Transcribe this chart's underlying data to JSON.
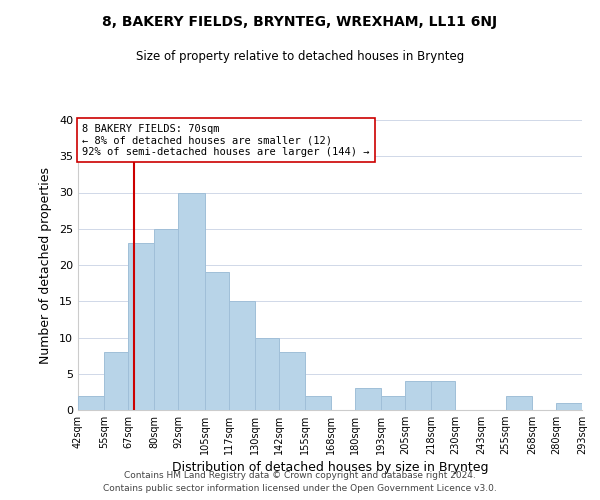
{
  "title": "8, BAKERY FIELDS, BRYNTEG, WREXHAM, LL11 6NJ",
  "subtitle": "Size of property relative to detached houses in Brynteg",
  "xlabel": "Distribution of detached houses by size in Brynteg",
  "ylabel": "Number of detached properties",
  "bar_edges": [
    42,
    55,
    67,
    80,
    92,
    105,
    117,
    130,
    142,
    155,
    168,
    180,
    193,
    205,
    218,
    230,
    243,
    255,
    268,
    280,
    293
  ],
  "bar_heights": [
    2,
    8,
    23,
    25,
    30,
    19,
    15,
    10,
    8,
    2,
    0,
    3,
    2,
    4,
    4,
    0,
    0,
    2,
    0,
    1
  ],
  "bar_color": "#b8d4e8",
  "bar_edge_color": "#a0bfd8",
  "property_line_x": 70,
  "property_line_color": "#cc0000",
  "annotation_line1": "8 BAKERY FIELDS: 70sqm",
  "annotation_line2": "← 8% of detached houses are smaller (12)",
  "annotation_line3": "92% of semi-detached houses are larger (144) →",
  "annotation_box_color": "#ffffff",
  "annotation_box_edge": "#cc0000",
  "ylim": [
    0,
    40
  ],
  "yticks": [
    0,
    5,
    10,
    15,
    20,
    25,
    30,
    35,
    40
  ],
  "tick_labels": [
    "42sqm",
    "55sqm",
    "67sqm",
    "80sqm",
    "92sqm",
    "105sqm",
    "117sqm",
    "130sqm",
    "142sqm",
    "155sqm",
    "168sqm",
    "180sqm",
    "193sqm",
    "205sqm",
    "218sqm",
    "230sqm",
    "243sqm",
    "255sqm",
    "268sqm",
    "280sqm",
    "293sqm"
  ],
  "footer_line1": "Contains HM Land Registry data © Crown copyright and database right 2024.",
  "footer_line2": "Contains public sector information licensed under the Open Government Licence v3.0.",
  "background_color": "#ffffff",
  "grid_color": "#d0d8e8"
}
